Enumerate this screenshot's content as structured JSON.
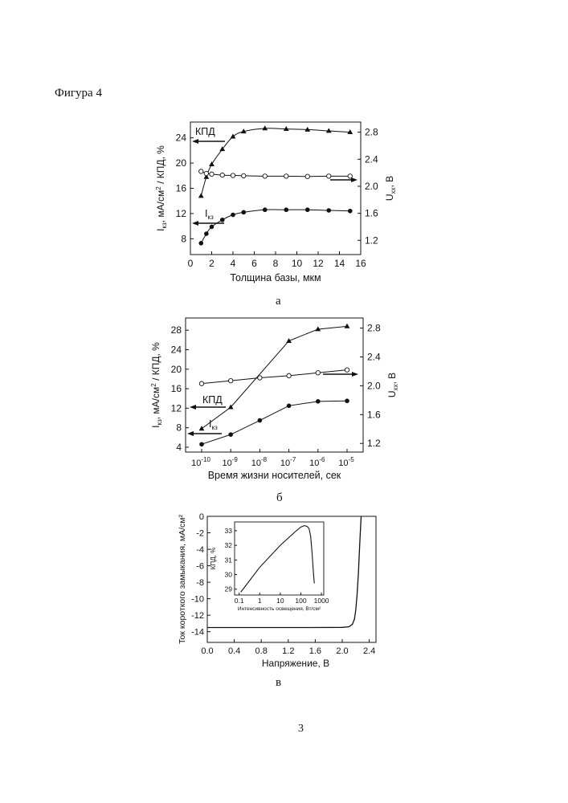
{
  "header": {
    "title": "Фигура 4"
  },
  "footer": {
    "page_number": "3"
  },
  "chart_data": [
    {
      "caption": "а",
      "type": "line",
      "xlabel": "Толщина базы, мкм",
      "xticks": [
        0,
        2,
        4,
        6,
        8,
        10,
        12,
        14,
        16
      ],
      "xlim": [
        0,
        16
      ],
      "ylabel_left": "I_кз, мА/см² / КПД, %",
      "yticks_left": [
        8,
        12,
        16,
        20,
        24
      ],
      "ylim_left": [
        5.5,
        26.5
      ],
      "ylabel_right": "U_xx, В",
      "yticks_right": [
        1.2,
        1.6,
        2.0,
        2.4,
        2.8
      ],
      "ylim_right": [
        0.99,
        2.95
      ],
      "annotations": {
        "kpd": "КПД",
        "isc": "I",
        "isc_sub": "кз"
      },
      "series": [
        {
          "marker": "triangle",
          "axis": "left",
          "x": [
            1,
            1.5,
            2,
            3,
            4,
            5,
            7,
            9,
            11,
            13,
            15
          ],
          "y": [
            14.8,
            17.8,
            19.8,
            22.2,
            24.2,
            25.0,
            25.5,
            25.4,
            25.3,
            25.1,
            24.9
          ]
        },
        {
          "marker": "open-circle",
          "axis": "right",
          "x": [
            1,
            1.5,
            2,
            3,
            4,
            5,
            7,
            9,
            11,
            13,
            15
          ],
          "y": [
            2.22,
            2.19,
            2.18,
            2.165,
            2.16,
            2.155,
            2.15,
            2.15,
            2.145,
            2.15,
            2.15
          ]
        },
        {
          "marker": "filled-circle",
          "axis": "left",
          "x": [
            1,
            1.5,
            2,
            3,
            4,
            5,
            7,
            9,
            11,
            13,
            15
          ],
          "y": [
            7.3,
            8.8,
            9.9,
            11.0,
            11.8,
            12.2,
            12.6,
            12.6,
            12.6,
            12.5,
            12.4
          ]
        }
      ]
    },
    {
      "caption": "б",
      "type": "line",
      "xlabel": "Время жизни носителей, сек",
      "xscale": "log",
      "xticks_exponents": [
        -10,
        -9,
        -8,
        -7,
        -6,
        -5
      ],
      "xtick_base": "10",
      "xlim": [
        1e-10,
        1e-05
      ],
      "ylabel_left": "I_кз, мА/см² / КПД, %",
      "yticks_left": [
        4,
        8,
        12,
        16,
        20,
        24,
        28
      ],
      "ylim_left": [
        3,
        30.5
      ],
      "ylabel_right": "U_xx, В",
      "yticks_right": [
        1.2,
        1.6,
        2.0,
        2.4,
        2.8
      ],
      "ylim_right": [
        1.08,
        2.94
      ],
      "annotations": {
        "kpd": "КПД",
        "isc": "I",
        "isc_sub": "кз"
      },
      "series": [
        {
          "marker": "triangle",
          "axis": "left",
          "x": [
            1e-10,
            1e-09,
            1e-07,
            1e-06,
            1e-05
          ],
          "y": [
            7.8,
            12.2,
            25.8,
            28.2,
            28.8
          ]
        },
        {
          "marker": "open-circle",
          "axis": "right",
          "x": [
            1e-10,
            1e-09,
            1e-08,
            1e-07,
            1e-06,
            1e-05
          ],
          "y": [
            2.03,
            2.07,
            2.11,
            2.14,
            2.18,
            2.22
          ]
        },
        {
          "marker": "filled-circle",
          "axis": "left",
          "x": [
            1e-10,
            1e-09,
            1e-08,
            1e-07,
            1e-06,
            1e-05
          ],
          "y": [
            4.6,
            6.6,
            9.5,
            12.5,
            13.4,
            13.5
          ]
        }
      ]
    },
    {
      "caption": "в",
      "type": "line",
      "xlabel": "Напряжение, В",
      "xticks": [
        "0.0",
        "0.4",
        "0.8",
        "1.2",
        "1.6",
        "2.0",
        "2.4"
      ],
      "xlim": [
        0,
        2.5
      ],
      "ylabel": "Ток короткого замыкания, мА/см²",
      "yticks": [
        "0",
        "-2",
        "-4",
        "-6",
        "-8",
        "-10",
        "-12",
        "-14"
      ],
      "ylim": [
        -15.3,
        0
      ],
      "series": [
        {
          "name": "",
          "x": [
            0,
            0.5,
            1.0,
            1.5,
            2.0,
            2.1,
            2.15,
            2.18,
            2.2,
            2.22,
            2.24,
            2.26,
            2.28
          ],
          "y": [
            -13.5,
            -13.5,
            -13.5,
            -13.5,
            -13.48,
            -13.4,
            -13.1,
            -12.5,
            -11.4,
            -9.5,
            -6.8,
            -3.2,
            0
          ]
        }
      ],
      "inset": {
        "type": "line",
        "xlabel": "Интенсивность освещения, Вт/см²",
        "xscale": "log",
        "xticks": [
          "0.1",
          "1",
          "10",
          "100",
          "1000"
        ],
        "xlim": [
          0.06,
          1300
        ],
        "ylabel": "КПД, %",
        "yticks": [
          "29",
          "30",
          "31",
          "32",
          "33"
        ],
        "ylim": [
          28.6,
          33.6
        ],
        "series": [
          {
            "name": "",
            "x": [
              0.12,
              1,
              10,
              50,
              100,
              150,
              200,
              250,
              300,
              350,
              400,
              450
            ],
            "y": [
              28.8,
              30.5,
              32.0,
              32.9,
              33.25,
              33.35,
              33.3,
              33.15,
              32.6,
              31.5,
              30.3,
              29.4
            ]
          }
        ]
      }
    }
  ]
}
